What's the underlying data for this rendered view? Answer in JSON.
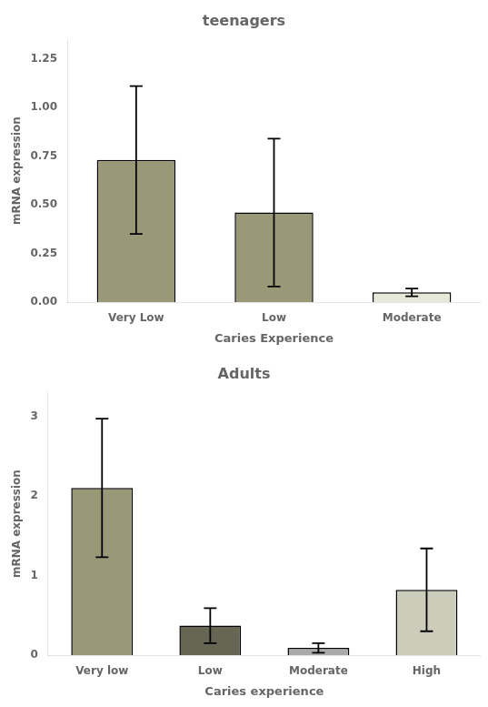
{
  "chart_data": [
    {
      "type": "bar",
      "title": "teenagers",
      "xlabel": "Caries Experience",
      "ylabel": "mRNA expression",
      "categories": [
        "Very Low",
        "Low",
        "Moderate"
      ],
      "values": [
        0.73,
        0.46,
        0.05
      ],
      "errors": [
        0.38,
        0.38,
        0.02
      ],
      "colors": [
        "#999977",
        "#999977",
        "#e8e8d8"
      ],
      "ylim": [
        0,
        1.35
      ],
      "yticks": [
        {
          "value": 0.0,
          "label": "0.00"
        },
        {
          "value": 0.25,
          "label": "0.25"
        },
        {
          "value": 0.5,
          "label": "0.50"
        },
        {
          "value": 0.75,
          "label": "0.75"
        },
        {
          "value": 1.0,
          "label": "1.00"
        },
        {
          "value": 1.25,
          "label": "1.25"
        }
      ],
      "grid": false
    },
    {
      "type": "bar",
      "title": "Adults",
      "xlabel": "Caries experience",
      "ylabel": "mRNA expression",
      "categories": [
        "Very low",
        "Low",
        "Moderate",
        "High"
      ],
      "values": [
        2.1,
        0.37,
        0.09,
        0.82
      ],
      "errors": [
        0.87,
        0.22,
        0.06,
        0.52
      ],
      "colors": [
        "#999977",
        "#666655",
        "#aaaaaa",
        "#ccccbb"
      ],
      "ylim": [
        0,
        3.3
      ],
      "yticks": [
        0,
        1,
        2,
        3
      ],
      "grid": false
    }
  ]
}
